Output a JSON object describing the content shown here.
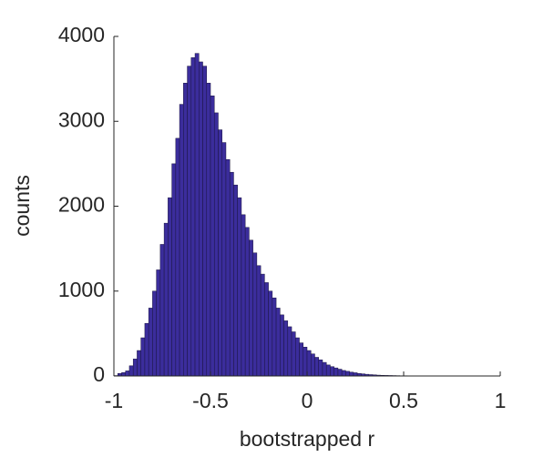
{
  "chart_data": {
    "type": "histogram",
    "xlabel": "bootstrapped r",
    "ylabel": "counts",
    "bins": [
      -1.0,
      -0.98,
      -0.96,
      -0.94,
      -0.92,
      -0.9,
      -0.88,
      -0.86,
      -0.84,
      -0.82,
      -0.8,
      -0.78,
      -0.76,
      -0.74,
      -0.72,
      -0.7,
      -0.68,
      -0.66,
      -0.64,
      -0.62,
      -0.6,
      -0.58,
      -0.56,
      -0.54,
      -0.52,
      -0.5,
      -0.48,
      -0.46,
      -0.44,
      -0.42,
      -0.4,
      -0.38,
      -0.36,
      -0.34,
      -0.32,
      -0.3,
      -0.28,
      -0.26,
      -0.24,
      -0.22,
      -0.2,
      -0.18,
      -0.16,
      -0.14,
      -0.12,
      -0.1,
      -0.08,
      -0.06,
      -0.04,
      -0.02,
      0.0,
      0.02,
      0.04,
      0.06,
      0.08,
      0.1,
      0.12,
      0.14,
      0.16,
      0.18,
      0.2,
      0.22,
      0.24,
      0.26,
      0.28,
      0.3,
      0.32,
      0.34,
      0.36,
      0.38,
      0.4,
      0.42,
      0.44,
      0.46,
      0.48,
      0.5,
      0.52,
      0.54,
      0.56,
      0.58,
      0.6,
      0.62,
      0.64,
      0.66,
      0.68,
      0.7,
      0.72,
      0.74
    ],
    "counts": [
      5,
      30,
      40,
      60,
      120,
      200,
      300,
      450,
      620,
      800,
      1000,
      1250,
      1550,
      1800,
      2100,
      2500,
      2800,
      3200,
      3450,
      3650,
      3750,
      3800,
      3700,
      3650,
      3450,
      3300,
      3100,
      2900,
      2750,
      2550,
      2400,
      2250,
      2100,
      1900,
      1750,
      1600,
      1450,
      1300,
      1200,
      1100,
      1000,
      920,
      800,
      720,
      650,
      580,
      520,
      450,
      390,
      340,
      300,
      260,
      220,
      190,
      160,
      130,
      110,
      95,
      80,
      65,
      55,
      45,
      38,
      30,
      25,
      20,
      16,
      13,
      10,
      8,
      7,
      6,
      5,
      4,
      3,
      3,
      2,
      2,
      2,
      1,
      1,
      1,
      1,
      1,
      1,
      1,
      1
    ],
    "color": "#3b2d9c",
    "edgecolor": "#1a1440",
    "xlim": [
      -1,
      1
    ],
    "xticks": [
      -1,
      -0.5,
      0,
      0.5,
      1
    ],
    "ylim": [
      0,
      4000
    ],
    "yticks": [
      0,
      1000,
      2000,
      3000,
      4000
    ]
  }
}
